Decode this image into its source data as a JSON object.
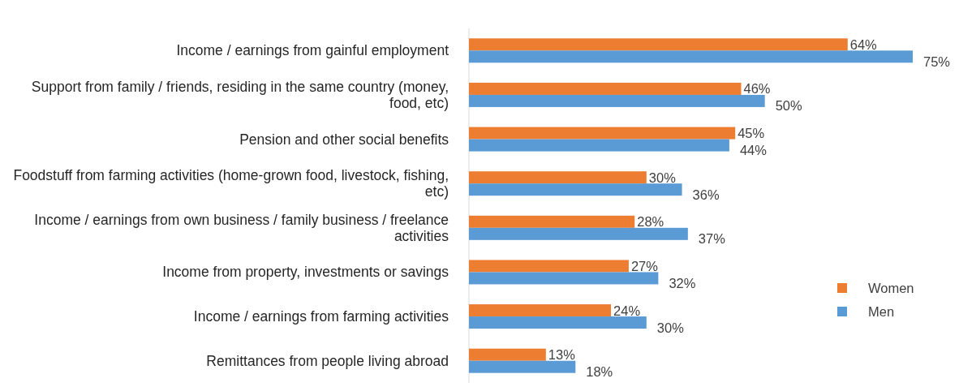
{
  "chart_data": {
    "type": "bar",
    "orientation": "horizontal",
    "data_labels": true,
    "legend": "right",
    "categories": [
      "Income / earnings from gainful employment",
      "Support from family / friends, residing in the same country (money, food, etc)",
      "Pension and other social benefits",
      "Foodstuff from farming activities (home-grown food, livestock, fishing, etc)",
      "Income / earnings from own business / family business / freelance activities",
      "Income from property, investments or savings",
      "Income / earnings from farming activities",
      "Remittances from people living abroad"
    ],
    "series": [
      {
        "name": "Women",
        "color": "#ed7d31",
        "values": [
          64,
          46,
          45,
          30,
          28,
          27,
          24,
          13
        ],
        "value_labels": [
          "64%",
          "46%",
          "45%",
          "30%",
          "28%",
          "27%",
          "24%",
          "13%"
        ]
      },
      {
        "name": "Men",
        "color": "#5b9bd5",
        "values": [
          75,
          50,
          44,
          36,
          37,
          32,
          30,
          18
        ],
        "value_labels": [
          "75%",
          "50%",
          "44%",
          "36%",
          "37%",
          "32%",
          "30%",
          "18%"
        ]
      }
    ]
  }
}
